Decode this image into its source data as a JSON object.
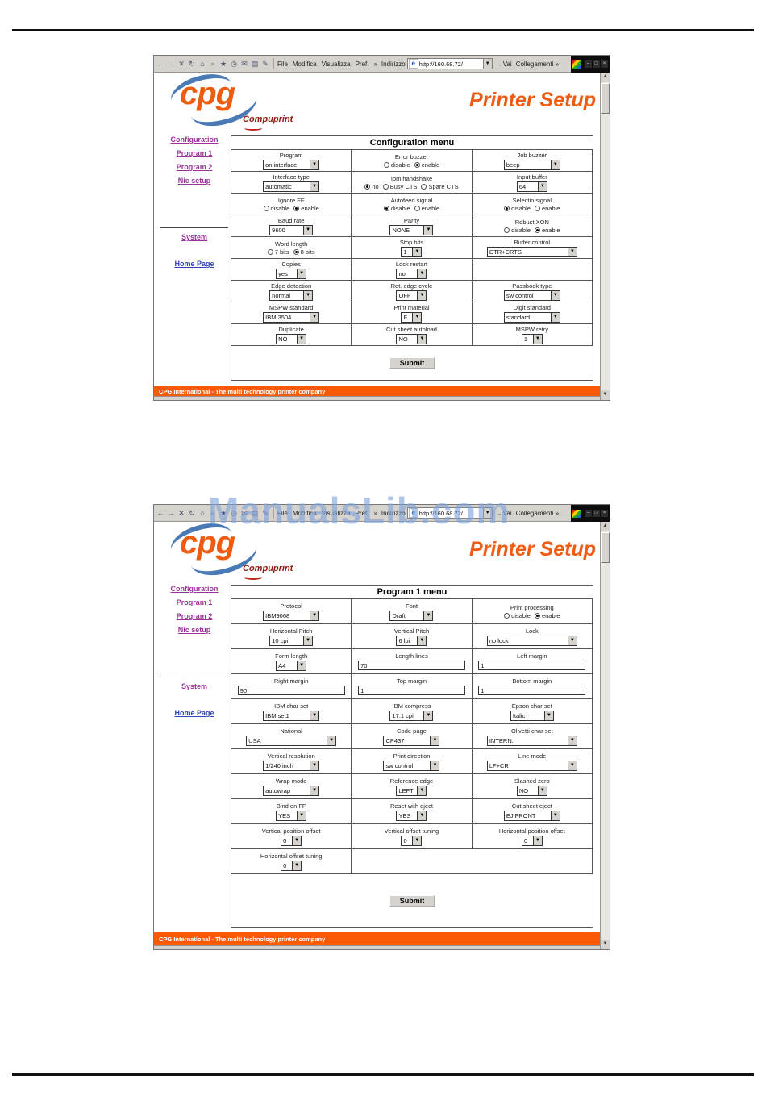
{
  "page": {
    "watermark": "ManualsLib.com"
  },
  "colors": {
    "accent_orange": "#ef5c10",
    "footer_orange": "#fa5a05",
    "link_purple": "#993399",
    "link_blue": "#3344bb",
    "watermark_blue": "#80a3da",
    "swoosh_blue": "#4a7ab5",
    "brand_red": "#8c1d12"
  },
  "browser": {
    "menu_items": [
      "File",
      "Modifica",
      "Visualizza",
      "Pref.",
      "»"
    ],
    "address_label": "Indirizzo",
    "address": "http://160.68.72/",
    "go_label": "Vai",
    "links_label": "Collegamenti »",
    "window_buttons": [
      "–",
      "□",
      "×"
    ],
    "nav_icons": [
      {
        "name": "back-icon",
        "glyph": "←"
      },
      {
        "name": "forward-icon",
        "glyph": "→"
      },
      {
        "name": "stop-icon",
        "glyph": "✕"
      },
      {
        "name": "refresh-icon",
        "glyph": "↻"
      },
      {
        "name": "home-icon",
        "glyph": "⌂"
      },
      {
        "name": "search-icon",
        "glyph": "⌕"
      },
      {
        "name": "favorites-icon",
        "glyph": "★"
      },
      {
        "name": "history-icon",
        "glyph": "◷"
      },
      {
        "name": "mail-icon",
        "glyph": "✉"
      },
      {
        "name": "print-icon",
        "glyph": "▤"
      },
      {
        "name": "edit-icon",
        "glyph": "✎"
      }
    ]
  },
  "site": {
    "logo_text": "cpg",
    "brand": "Compuprint",
    "title": "Printer Setup",
    "sidebar": [
      "Configuration",
      "Program 1",
      "Program 2",
      "Nic setup",
      "System",
      "Home Page"
    ],
    "submit_label": "Submit",
    "footer": "CPG International - The multi technology printer company"
  },
  "config_menu": {
    "title": "Configuration menu",
    "rows": [
      [
        {
          "label": "Program",
          "type": "select",
          "value": "on interface",
          "size": "m"
        },
        {
          "label": "Error buzzer",
          "type": "radio",
          "options": [
            {
              "text": "disable",
              "selected": false
            },
            {
              "text": "enable",
              "selected": true
            }
          ]
        },
        {
          "label": "Job buzzer",
          "type": "select",
          "value": "beep",
          "size": "m"
        }
      ],
      [
        {
          "label": "Interface type",
          "type": "select",
          "value": "automatic",
          "size": "m"
        },
        {
          "label": "Ibm handshake",
          "type": "radio",
          "options": [
            {
              "text": "no",
              "selected": true
            },
            {
              "text": "Busy CTS",
              "selected": false
            },
            {
              "text": "Spare CTS",
              "selected": false
            }
          ]
        },
        {
          "label": "Input buffer",
          "type": "select",
          "value": "64",
          "size": "s"
        }
      ],
      [
        {
          "label": "Ignore FF",
          "type": "radio",
          "options": [
            {
              "text": "disable",
              "selected": false
            },
            {
              "text": "enable",
              "selected": true
            }
          ]
        },
        {
          "label": "Autofeed signal",
          "type": "radio",
          "options": [
            {
              "text": "disable",
              "selected": true
            },
            {
              "text": "enable",
              "selected": false
            }
          ]
        },
        {
          "label": "Selectin signal",
          "type": "radio",
          "options": [
            {
              "text": "disable",
              "selected": true
            },
            {
              "text": "enable",
              "selected": false
            }
          ]
        }
      ],
      [
        {
          "label": "Baud rate",
          "type": "select",
          "value": "9600",
          "size": "d"
        },
        {
          "label": "Parity",
          "type": "select",
          "value": "NONE",
          "size": "d"
        },
        {
          "label": "Robust XON",
          "type": "radio",
          "options": [
            {
              "text": "disable",
              "selected": false
            },
            {
              "text": "enable",
              "selected": true
            }
          ]
        }
      ],
      [
        {
          "label": "Word length",
          "type": "radio",
          "options": [
            {
              "text": "7 bits",
              "selected": false
            },
            {
              "text": "8 bits",
              "selected": true
            }
          ]
        },
        {
          "label": "Stop bits",
          "type": "select",
          "value": "1",
          "size": "xs"
        },
        {
          "label": "Buffer control",
          "type": "select",
          "value": "DTR+CRTS",
          "size": "l"
        }
      ],
      [
        {
          "label": "Copies",
          "type": "select",
          "value": "yes",
          "size": "s"
        },
        {
          "label": "Lock restart",
          "type": "select",
          "value": "no",
          "size": "s"
        },
        {
          "label": "",
          "type": "empty"
        }
      ],
      [
        {
          "label": "Edge detection",
          "type": "select",
          "value": "normal",
          "size": "d"
        },
        {
          "label": "Ret. edge cycle",
          "type": "select",
          "value": "OFF",
          "size": "s"
        },
        {
          "label": "Passbook type",
          "type": "select",
          "value": "sw control",
          "size": "m"
        }
      ],
      [
        {
          "label": "MSPW standard",
          "type": "select",
          "value": "IBM 3504",
          "size": "m"
        },
        {
          "label": "Print material",
          "type": "select",
          "value": "F",
          "size": "xs"
        },
        {
          "label": "Digit standard",
          "type": "select",
          "value": "standard",
          "size": "m"
        }
      ],
      [
        {
          "label": "Duplicate",
          "type": "select",
          "value": "NO",
          "size": "s"
        },
        {
          "label": "Cut sheet autoload",
          "type": "select",
          "value": "NO",
          "size": "s"
        },
        {
          "label": "MSPW retry",
          "type": "select",
          "value": "1",
          "size": "xs"
        }
      ]
    ]
  },
  "program1_menu": {
    "title": "Program 1 menu",
    "rows": [
      [
        {
          "label": "Protocol",
          "type": "select",
          "value": "IBM9068",
          "size": "m"
        },
        {
          "label": "Font",
          "type": "select",
          "value": "Draft",
          "size": "d"
        },
        {
          "label": "Print processing",
          "type": "radio",
          "options": [
            {
              "text": "disable",
              "selected": false
            },
            {
              "text": "enable",
              "selected": true
            }
          ]
        }
      ],
      [
        {
          "label": "Horizontal Pitch",
          "type": "select",
          "value": "10 cpi",
          "size": "d"
        },
        {
          "label": "Vertical Pitch",
          "type": "select",
          "value": "6 lpi",
          "size": "s"
        },
        {
          "label": "Lock",
          "type": "select",
          "value": "no lock",
          "size": "l"
        }
      ],
      [
        {
          "label": "Form length",
          "type": "select",
          "value": "A4",
          "size": "s"
        },
        {
          "label": "Length lines",
          "type": "input",
          "value": "70"
        },
        {
          "label": "Left margin",
          "type": "input",
          "value": "1"
        }
      ],
      [
        {
          "label": "Right margin",
          "type": "input",
          "value": "90"
        },
        {
          "label": "Top margin",
          "type": "input",
          "value": "1"
        },
        {
          "label": "Bottom margin",
          "type": "input",
          "value": "1"
        }
      ],
      [
        {
          "label": "IBM char set",
          "type": "select",
          "value": "IBM set1",
          "size": "m"
        },
        {
          "label": "IBM compress",
          "type": "select",
          "value": "17.1 cpi",
          "size": "d"
        },
        {
          "label": "Epson char set",
          "type": "select",
          "value": "Italic",
          "size": "d"
        }
      ],
      [
        {
          "label": "National",
          "type": "select",
          "value": "USA",
          "size": "l"
        },
        {
          "label": "Code page",
          "type": "select",
          "value": "CP437",
          "size": "m"
        },
        {
          "label": "Olivetti char set",
          "type": "select",
          "value": "INTERN.",
          "size": "l"
        }
      ],
      [
        {
          "label": "Vertical resolution",
          "type": "select",
          "value": "1/240 inch",
          "size": "m"
        },
        {
          "label": "Print direction",
          "type": "select",
          "value": "sw control",
          "size": "m"
        },
        {
          "label": "Line mode",
          "type": "select",
          "value": "LF+CR",
          "size": "l"
        }
      ],
      [
        {
          "label": "Wrap mode",
          "type": "select",
          "value": "autowrap",
          "size": "m"
        },
        {
          "label": "Reference edge",
          "type": "select",
          "value": "LEFT",
          "size": "s"
        },
        {
          "label": "Slashed zero",
          "type": "select",
          "value": "NO",
          "size": "s"
        }
      ],
      [
        {
          "label": "Bind on FF",
          "type": "select",
          "value": "YES",
          "size": "s"
        },
        {
          "label": "Reset with eject",
          "type": "select",
          "value": "YES",
          "size": "s"
        },
        {
          "label": "Cut sheet eject",
          "type": "select",
          "value": "EJ.FRONT",
          "size": "m"
        }
      ],
      [
        {
          "label": "Vertical position offset",
          "type": "select",
          "value": "0",
          "size": "xs"
        },
        {
          "label": "Vertical offset tuning",
          "type": "select",
          "value": "0",
          "size": "xs"
        },
        {
          "label": "Horizontal position offset",
          "type": "select",
          "value": "0",
          "size": "xs"
        }
      ],
      [
        {
          "label": "Horizontal offset tuning",
          "type": "select",
          "value": "0",
          "size": "xs"
        },
        {
          "label": "",
          "type": "empty",
          "span": 2
        }
      ]
    ]
  }
}
